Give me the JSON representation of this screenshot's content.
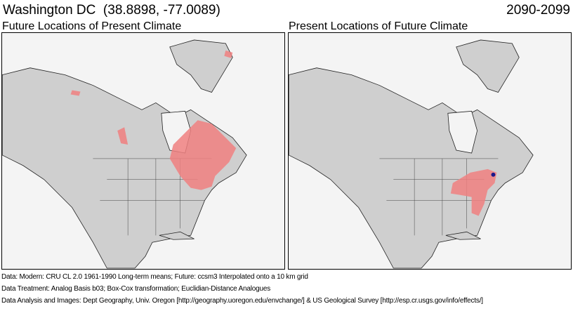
{
  "header": {
    "location": "Washington DC",
    "coordinates": "(38.8898, -77.0089)",
    "period": "2090-2099"
  },
  "panels": [
    {
      "title": "Future Locations of Present Climate"
    },
    {
      "title": "Present Locations of Future Climate"
    }
  ],
  "colors": {
    "land": "#cfcfcf",
    "water": "#f4f4f4",
    "analog": "#f08080",
    "border": "#222222",
    "site": "#1a1a8c"
  },
  "footer": [
    "Data:  Modern: CRU CL 2.0 1961-1990 Long-term means; Future: ccsm3 Interpolated onto a 10 km grid",
    "Data Treatment:  Analog Basis b03; Box-Cox transformation; Euclidian-Distance Analogues",
    "Data Analysis and Images:  Dept Geography, Univ. Oregon [http://geography.uoregon.edu/envchange/] & US Geological Survey [http://esp.cr.usgs.gov/info/effects/]"
  ]
}
